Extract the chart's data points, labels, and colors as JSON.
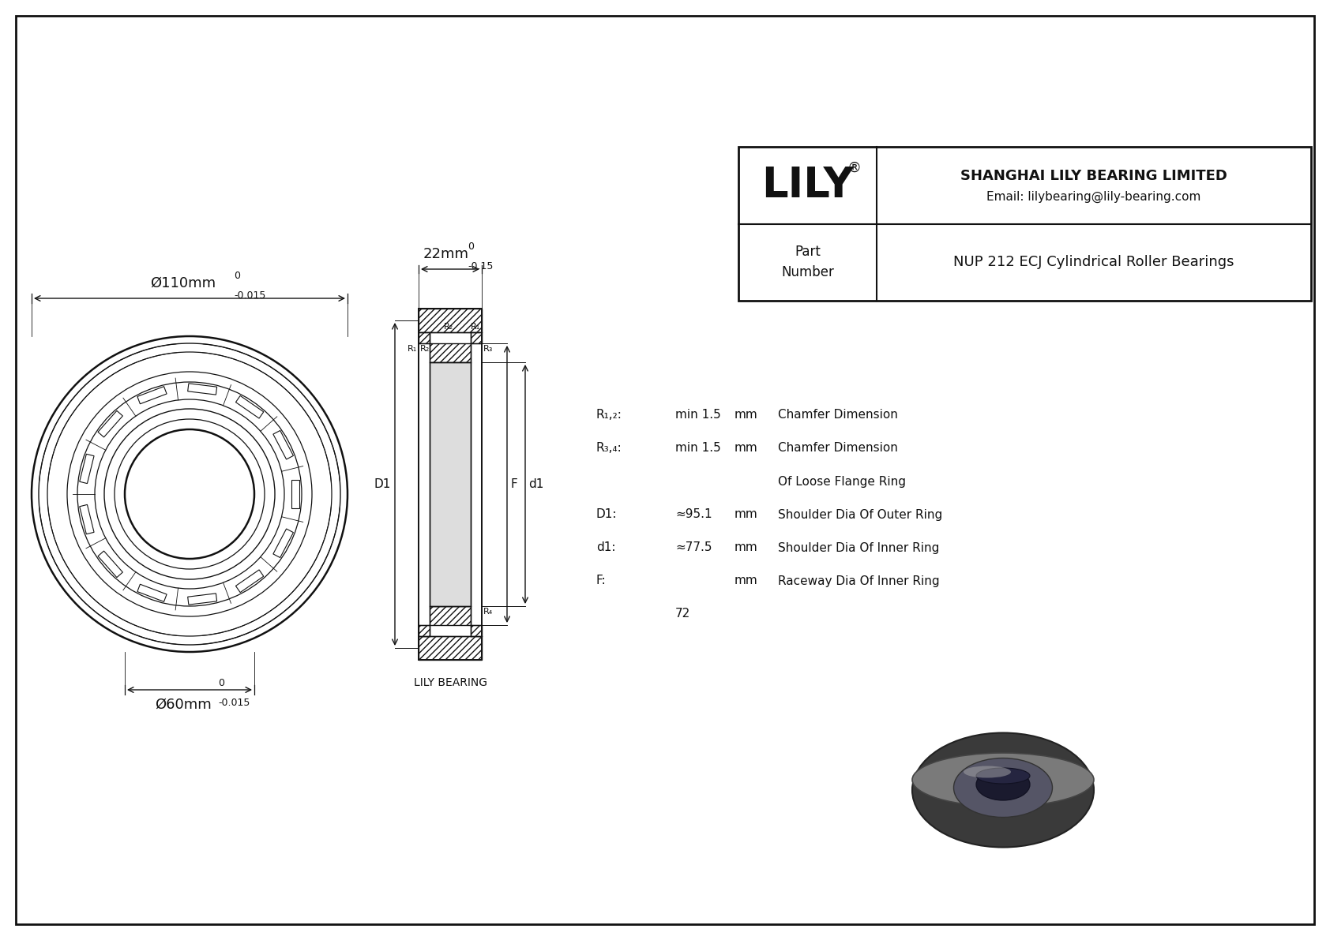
{
  "bg_color": "#ffffff",
  "dim_outer": "Ø110mm",
  "dim_outer_tol_top": "0",
  "dim_outer_tol_bot": "-0.015",
  "dim_inner": "Ø60mm",
  "dim_inner_tol_top": "0",
  "dim_inner_tol_bot": "-0.015",
  "dim_width": "22mm",
  "dim_width_tol_top": "0",
  "dim_width_tol_bot": "-0.15",
  "label_lily_bearing": "LILY BEARING",
  "title_company": "SHANGHAI LILY BEARING LIMITED",
  "title_email": "Email: lilybearing@lily-bearing.com",
  "part_label": "Part\nNumber",
  "part_number": "NUP 212 ECJ Cylindrical Roller Bearings",
  "params": [
    {
      "label": "R₁,₂:",
      "value": "min 1.5",
      "unit": "mm",
      "desc": "Chamfer Dimension"
    },
    {
      "label": "R₃,₄:",
      "value": "min 1.5",
      "unit": "mm",
      "desc": "Chamfer Dimension"
    },
    {
      "label": "",
      "value": "",
      "unit": "",
      "desc": "Of Loose Flange Ring"
    },
    {
      "label": "D1:",
      "value": "≈95.1",
      "unit": "mm",
      "desc": "Shoulder Dia Of Outer Ring"
    },
    {
      "label": "d1:",
      "value": "≈77.5",
      "unit": "mm",
      "desc": "Shoulder Dia Of Inner Ring"
    },
    {
      "label": "F:",
      "value": "",
      "unit": "mm",
      "desc": "Raceway Dia Of Inner Ring"
    },
    {
      "label": "",
      "value": "72",
      "unit": "",
      "desc": ""
    }
  ]
}
